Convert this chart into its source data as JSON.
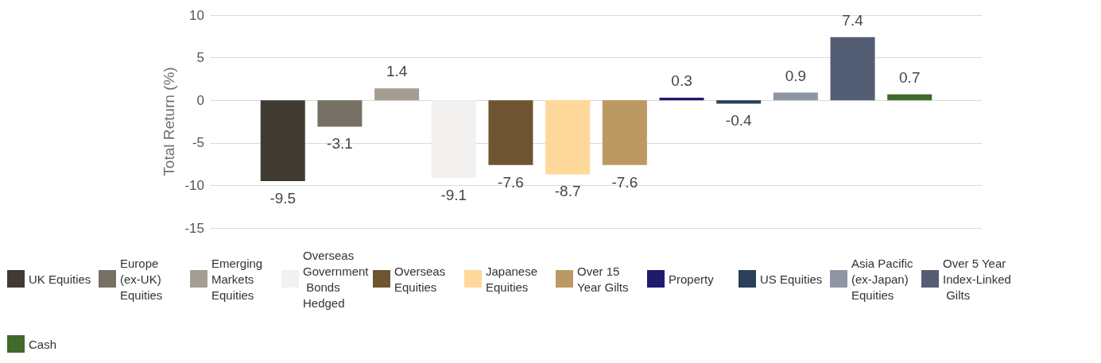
{
  "chart_data": {
    "type": "bar",
    "ylabel": "Total Return (%)",
    "categories": [
      null
    ],
    "ylim": [
      -15,
      10
    ],
    "yticks": [
      -15,
      -10,
      -5,
      0,
      5,
      10
    ],
    "grid": "y",
    "legend": "bottom",
    "data_labels": true,
    "series": [
      {
        "name": "UK Equities",
        "color": "#3f3b33",
        "values": [
          -9.5
        ]
      },
      {
        "name": "Europe (ex-UK) Equities",
        "color": "#767065",
        "values": [
          -3.1
        ]
      },
      {
        "name": "Emerging Markets Equities",
        "color": "#a59d92",
        "values": [
          1.4
        ]
      },
      {
        "name": "Overseas Government Bonds Hedged",
        "color": "#f2f1ef",
        "values": [
          -9.1
        ]
      },
      {
        "name": "Overseas Equities",
        "color": "#6e5430",
        "values": [
          -7.6
        ]
      },
      {
        "name": "Japanese Equities",
        "color": "#fed89b",
        "values": [
          -8.7
        ]
      },
      {
        "name": "Over 15 Year Gilts",
        "color": "#bc9862",
        "values": [
          -7.6
        ]
      },
      {
        "name": "Property",
        "color": "#1f1a6e",
        "values": [
          0.3
        ]
      },
      {
        "name": "US Equities",
        "color": "#2a405a",
        "values": [
          -0.4
        ]
      },
      {
        "name": "Asia Pacific (ex-Japan) Equities",
        "color": "#8e96a4",
        "values": [
          0.9
        ]
      },
      {
        "name": "Over 5 Year Index-Linked Gilts",
        "color": "#535d73",
        "values": [
          7.4
        ]
      },
      {
        "name": "Cash",
        "color": "#3f6a2a",
        "values": [
          0.7
        ]
      }
    ]
  }
}
